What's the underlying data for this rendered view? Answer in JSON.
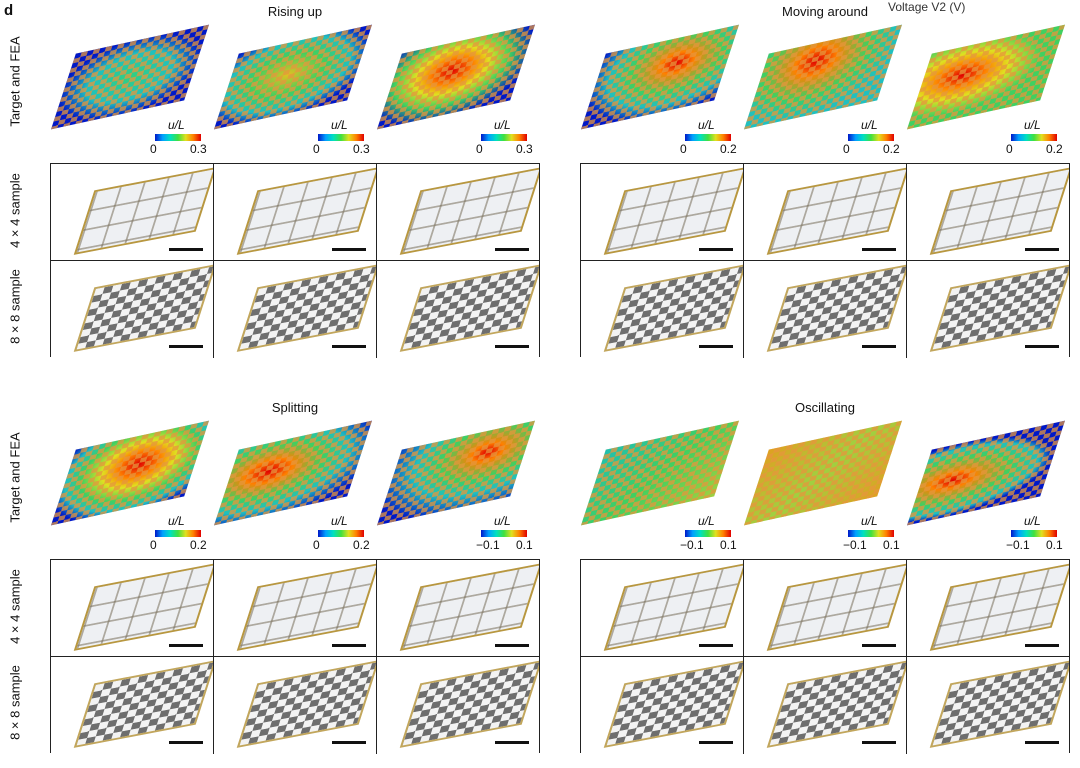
{
  "panel_letter": "d",
  "voltage_label": "Voltage V2 (V)",
  "row_labels": {
    "fea": "Target and FEA",
    "s4": "4 × 4 sample",
    "s8": "8 × 8 sample"
  },
  "colorbar_label": "u/L",
  "colormap": [
    "#0018c8",
    "#00a0ff",
    "#00e0c0",
    "#40e040",
    "#e0e020",
    "#ff8000",
    "#e00000"
  ],
  "quadrants": [
    {
      "title": "Rising up",
      "colorbars": [
        {
          "min": "0",
          "max": "0.3"
        },
        {
          "min": "0",
          "max": "0.3"
        },
        {
          "min": "0",
          "max": "0.3"
        }
      ]
    },
    {
      "title": "Moving around",
      "colorbars": [
        {
          "min": "0",
          "max": "0.2"
        },
        {
          "min": "0",
          "max": "0.2"
        },
        {
          "min": "0",
          "max": "0.2"
        }
      ]
    },
    {
      "title": "Splitting",
      "colorbars": [
        {
          "min": "0",
          "max": "0.2"
        },
        {
          "min": "0",
          "max": "0.2"
        },
        {
          "min": "−0.1",
          "max": "0.1"
        }
      ]
    },
    {
      "title": "Oscillating",
      "colorbars": [
        {
          "min": "−0.1",
          "max": "0.1"
        },
        {
          "min": "−0.1",
          "max": "0.1"
        },
        {
          "min": "−0.1",
          "max": "0.1"
        }
      ]
    }
  ]
}
